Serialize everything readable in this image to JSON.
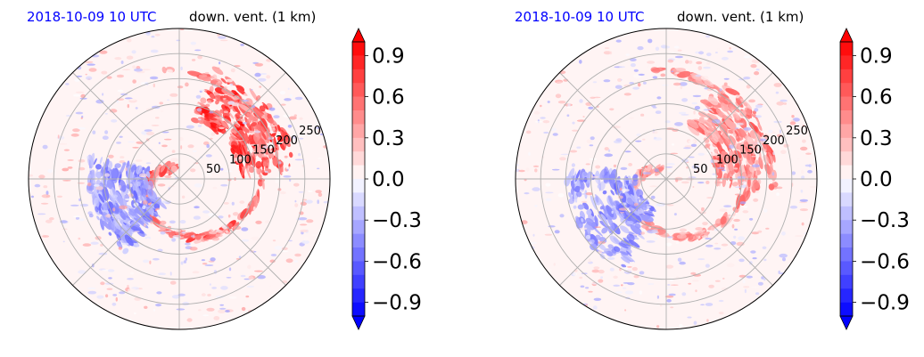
{
  "chart_data": [
    {
      "type": "heatmap",
      "projection": "polar",
      "title_left": "2018-10-09 10 UTC",
      "title_right": "down. vent. (1 km)",
      "radial_ticks": [
        50,
        100,
        150,
        200,
        250
      ],
      "colorbar": {
        "ticks": [
          "0.9",
          "0.6",
          "0.3",
          "0.0",
          "−0.3",
          "−0.6",
          "−0.9"
        ],
        "range": [
          -1.0,
          1.0
        ],
        "extend": "both",
        "cmap": "bwr",
        "color_negative": "#0000ff",
        "color_zero": "#ffffff",
        "color_positive": "#ff0000"
      },
      "field_features": [
        {
          "kind": "band",
          "angle_deg": 40,
          "r_inner": 120,
          "r_outer": 230,
          "sign": 1,
          "strength": 1.0
        },
        {
          "kind": "spiral",
          "sign": 1,
          "strength": 0.8
        },
        {
          "kind": "band",
          "angle_deg": 200,
          "r_inner": 60,
          "r_outer": 180,
          "sign": -1,
          "strength": 0.6
        }
      ]
    },
    {
      "type": "heatmap",
      "projection": "polar",
      "title_left": "2018-10-09 10 UTC",
      "title_right": "down. vent. (1 km)",
      "radial_ticks": [
        50,
        100,
        150,
        200,
        250
      ],
      "colorbar": {
        "ticks": [
          "0.9",
          "0.6",
          "0.3",
          "0.0",
          "−0.3",
          "−0.6",
          "−0.9"
        ],
        "range": [
          -1.0,
          1.0
        ],
        "extend": "both",
        "cmap": "bwr",
        "color_negative": "#0000ff",
        "color_zero": "#ffffff",
        "color_positive": "#ff0000"
      },
      "field_features": [
        {
          "kind": "band",
          "angle_deg": 30,
          "r_inner": 100,
          "r_outer": 220,
          "sign": 1,
          "strength": 0.7
        },
        {
          "kind": "spiral",
          "sign": 1,
          "strength": 0.6
        },
        {
          "kind": "band",
          "angle_deg": 210,
          "r_inner": 60,
          "r_outer": 200,
          "sign": -1,
          "strength": 0.6
        }
      ]
    }
  ]
}
